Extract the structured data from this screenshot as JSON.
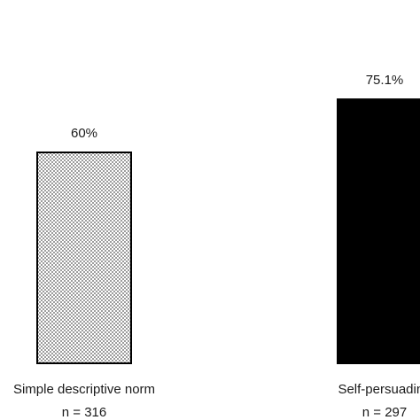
{
  "chart_data": {
    "type": "bar",
    "title": "",
    "xlabel": "",
    "ylabel": "",
    "ylim": [
      0,
      90
    ],
    "grid": false,
    "categories": [
      {
        "name": "Simple descriptive norm",
        "n_label": "n = 316"
      },
      {
        "name": "Self-persuading",
        "n_label": "n = 297"
      }
    ],
    "series": [
      {
        "values": [
          60,
          75.1
        ],
        "data_labels": [
          "60%",
          "75.1%"
        ],
        "fills": [
          "dotted-pattern",
          "#000000"
        ]
      }
    ]
  },
  "colors": {
    "bar_solid": "#000000",
    "bar_pattern_dot": "#555555",
    "bar_pattern_bg": "#ffffff",
    "outline": "#000000"
  }
}
